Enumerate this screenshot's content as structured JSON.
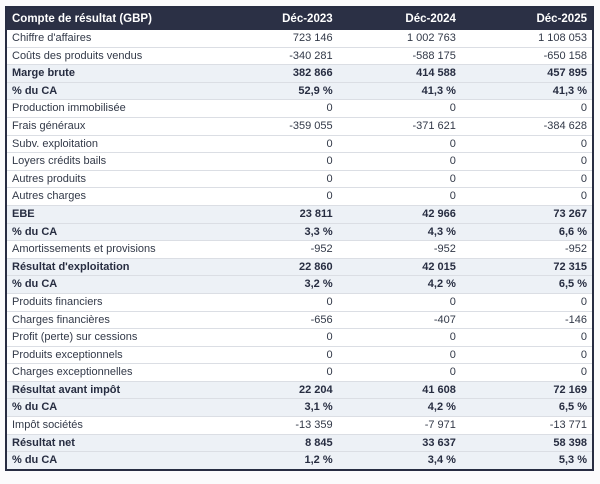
{
  "chart_data": {
    "type": "table",
    "title": "Compte de résultat (GBP)",
    "columns": [
      "Déc-2023",
      "Déc-2024",
      "Déc-2025"
    ],
    "rows": [
      {
        "label": "Chiffre d'affaires",
        "values": [
          "723 146",
          "1 002 763",
          "1 108 053"
        ],
        "emphasis": false
      },
      {
        "label": "Coûts des produits vendus",
        "values": [
          "-340 281",
          "-588 175",
          "-650 158"
        ],
        "emphasis": false
      },
      {
        "label": "Marge brute",
        "values": [
          "382 866",
          "414 588",
          "457 895"
        ],
        "emphasis": true
      },
      {
        "label": "% du CA",
        "values": [
          "52,9 %",
          "41,3 %",
          "41,3 %"
        ],
        "emphasis": true
      },
      {
        "label": "Production immobilisée",
        "values": [
          "0",
          "0",
          "0"
        ],
        "emphasis": false
      },
      {
        "label": "Frais généraux",
        "values": [
          "-359 055",
          "-371 621",
          "-384 628"
        ],
        "emphasis": false
      },
      {
        "label": "Subv. exploitation",
        "values": [
          "0",
          "0",
          "0"
        ],
        "emphasis": false
      },
      {
        "label": "Loyers crédits bails",
        "values": [
          "0",
          "0",
          "0"
        ],
        "emphasis": false
      },
      {
        "label": "Autres produits",
        "values": [
          "0",
          "0",
          "0"
        ],
        "emphasis": false
      },
      {
        "label": "Autres charges",
        "values": [
          "0",
          "0",
          "0"
        ],
        "emphasis": false
      },
      {
        "label": "EBE",
        "values": [
          "23 811",
          "42 966",
          "73 267"
        ],
        "emphasis": true
      },
      {
        "label": "% du CA",
        "values": [
          "3,3 %",
          "4,3 %",
          "6,6 %"
        ],
        "emphasis": true
      },
      {
        "label": "Amortissements et provisions",
        "values": [
          "-952",
          "-952",
          "-952"
        ],
        "emphasis": false
      },
      {
        "label": "Résultat d'exploitation",
        "values": [
          "22 860",
          "42 015",
          "72 315"
        ],
        "emphasis": true
      },
      {
        "label": "% du CA",
        "values": [
          "3,2 %",
          "4,2 %",
          "6,5 %"
        ],
        "emphasis": true
      },
      {
        "label": "Produits financiers",
        "values": [
          "0",
          "0",
          "0"
        ],
        "emphasis": false
      },
      {
        "label": "Charges financières",
        "values": [
          "-656",
          "-407",
          "-146"
        ],
        "emphasis": false
      },
      {
        "label": "Profit (perte) sur cessions",
        "values": [
          "0",
          "0",
          "0"
        ],
        "emphasis": false
      },
      {
        "label": "Produits exceptionnels",
        "values": [
          "0",
          "0",
          "0"
        ],
        "emphasis": false
      },
      {
        "label": "Charges exceptionnelles",
        "values": [
          "0",
          "0",
          "0"
        ],
        "emphasis": false
      },
      {
        "label": "Résultat avant impôt",
        "values": [
          "22 204",
          "41 608",
          "72 169"
        ],
        "emphasis": true
      },
      {
        "label": "% du CA",
        "values": [
          "3,1 %",
          "4,2 %",
          "6,5 %"
        ],
        "emphasis": true
      },
      {
        "label": "Impôt sociétés",
        "values": [
          "-13 359",
          "-7 971",
          "-13 771"
        ],
        "emphasis": false
      },
      {
        "label": "Résultat net",
        "values": [
          "8 845",
          "33 637",
          "58 398"
        ],
        "emphasis": true
      },
      {
        "label": "% du CA",
        "values": [
          "1,2 %",
          "3,4 %",
          "5,3 %"
        ],
        "emphasis": true
      }
    ],
    "layout": {
      "value_alignment": "right",
      "grid": "horizontal-row-separators",
      "legend": "none"
    },
    "colors": {
      "header_bg": "#2b3045",
      "header_text": "#ffffff",
      "highlight_row_bg": "#edf1f6",
      "normal_row_bg": "#ffffff",
      "body_text": "#323948",
      "emphasis_text": "#272d41",
      "row_separator": "#dbdee4",
      "outer_border": "#282d42",
      "page_bg": "#fbfbfc"
    }
  }
}
